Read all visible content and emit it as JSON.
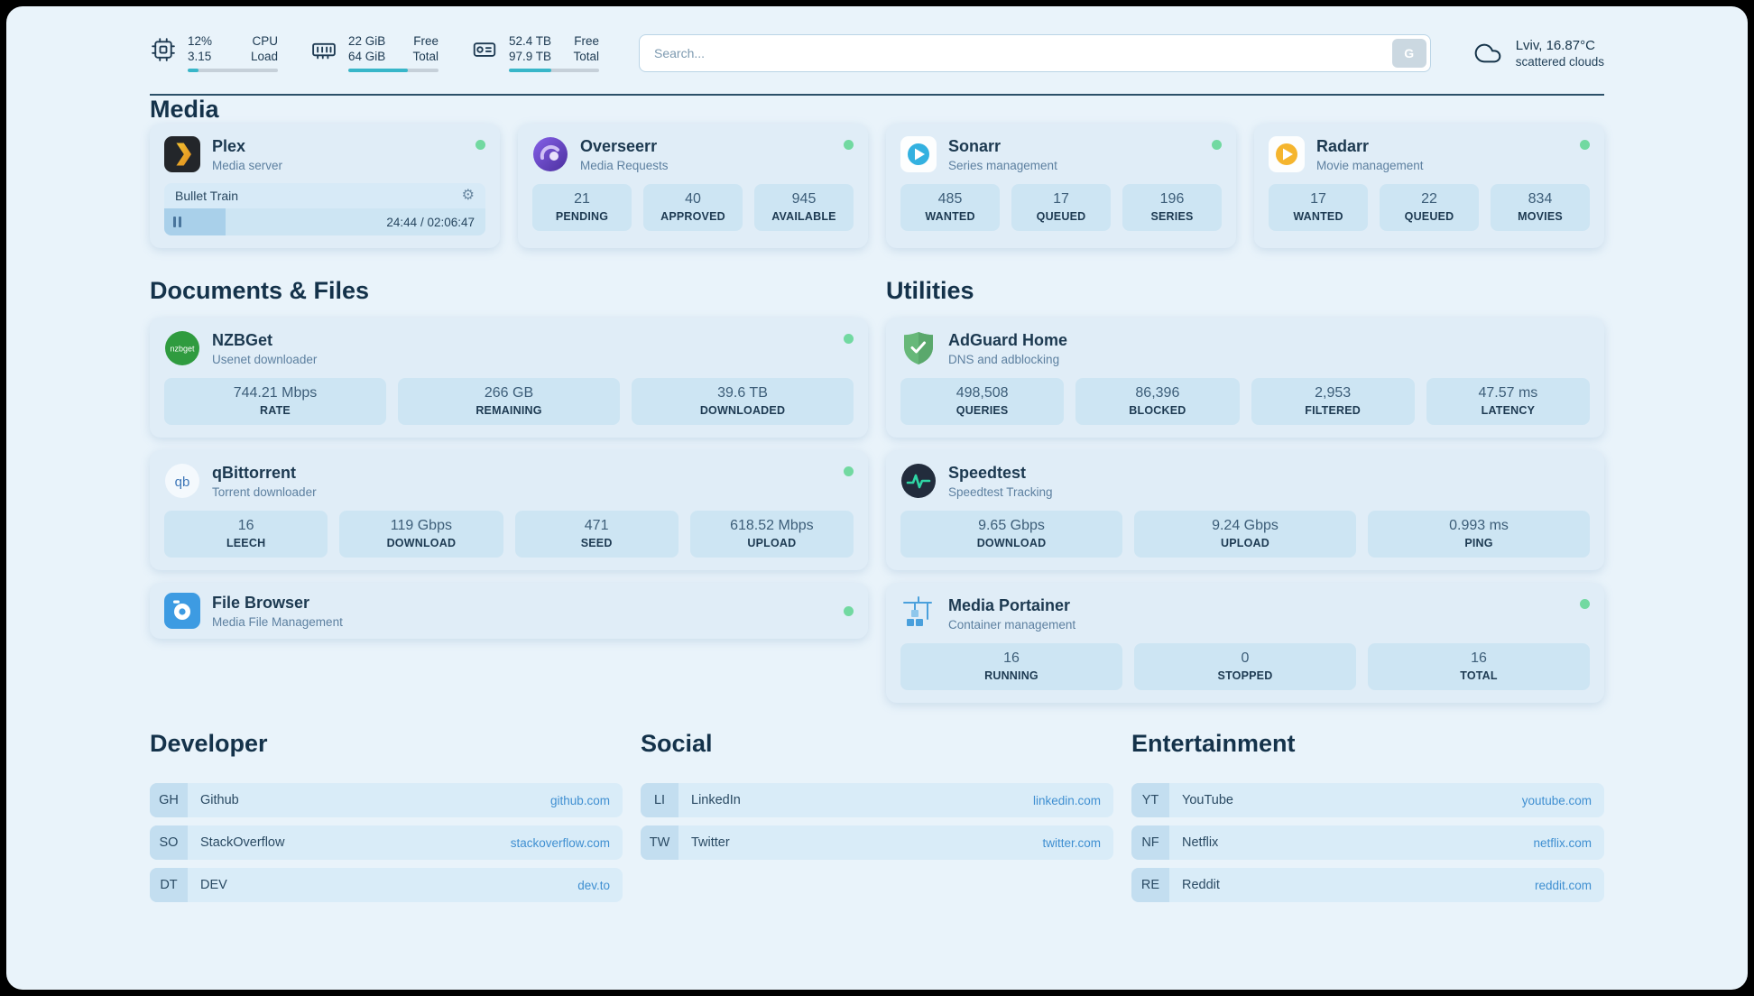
{
  "colors": {
    "status_green": "#72d9a1",
    "accent_teal": "#38b6c9",
    "link_blue": "#3f8fd1"
  },
  "topbar": {
    "cpu": {
      "pct": "12%",
      "load": "3.15",
      "l1": "CPU",
      "l2": "Load",
      "progress": 12
    },
    "ram": {
      "v1": "22 GiB",
      "v2": "64 GiB",
      "l1": "Free",
      "l2": "Total",
      "progress": 66
    },
    "disk": {
      "v1": "52.4 TB",
      "v2": "97.9 TB",
      "l1": "Free",
      "l2": "Total",
      "progress": 47
    },
    "search": {
      "placeholder": "Search...",
      "button": "G"
    },
    "weather": {
      "location": "Lviv, 16.87°C",
      "condition": "scattered clouds"
    }
  },
  "media": {
    "heading": "Media",
    "plex": {
      "title": "Plex",
      "subtitle": "Media server",
      "now_playing": "Bullet Train",
      "time": "24:44 / 02:06:47",
      "progress": 19
    },
    "overseerr": {
      "title": "Overseerr",
      "subtitle": "Media Requests",
      "stats": [
        {
          "value": "21",
          "label": "PENDING"
        },
        {
          "value": "40",
          "label": "APPROVED"
        },
        {
          "value": "945",
          "label": "AVAILABLE"
        }
      ]
    },
    "sonarr": {
      "title": "Sonarr",
      "subtitle": "Series management",
      "stats": [
        {
          "value": "485",
          "label": "WANTED"
        },
        {
          "value": "17",
          "label": "QUEUED"
        },
        {
          "value": "196",
          "label": "SERIES"
        }
      ]
    },
    "radarr": {
      "title": "Radarr",
      "subtitle": "Movie management",
      "stats": [
        {
          "value": "17",
          "label": "WANTED"
        },
        {
          "value": "22",
          "label": "QUEUED"
        },
        {
          "value": "834",
          "label": "MOVIES"
        }
      ]
    }
  },
  "documents": {
    "heading": "Documents & Files",
    "nzbget": {
      "title": "NZBGet",
      "subtitle": "Usenet downloader",
      "stats": [
        {
          "value": "744.21 Mbps",
          "label": "RATE"
        },
        {
          "value": "266 GB",
          "label": "REMAINING"
        },
        {
          "value": "39.6 TB",
          "label": "DOWNLOADED"
        }
      ]
    },
    "qbittorrent": {
      "title": "qBittorrent",
      "subtitle": "Torrent downloader",
      "stats": [
        {
          "value": "16",
          "label": "LEECH"
        },
        {
          "value": "119 Gbps",
          "label": "DOWNLOAD"
        },
        {
          "value": "471",
          "label": "SEED"
        },
        {
          "value": "618.52 Mbps",
          "label": "UPLOAD"
        }
      ]
    },
    "filebrowser": {
      "title": "File Browser",
      "subtitle": "Media File Management"
    }
  },
  "utilities": {
    "heading": "Utilities",
    "adguard": {
      "title": "AdGuard Home",
      "subtitle": "DNS and adblocking",
      "stats": [
        {
          "value": "498,508",
          "label": "QUERIES"
        },
        {
          "value": "86,396",
          "label": "BLOCKED"
        },
        {
          "value": "2,953",
          "label": "FILTERED"
        },
        {
          "value": "47.57 ms",
          "label": "LATENCY"
        }
      ]
    },
    "speedtest": {
      "title": "Speedtest",
      "subtitle": "Speedtest Tracking",
      "stats": [
        {
          "value": "9.65 Gbps",
          "label": "DOWNLOAD"
        },
        {
          "value": "9.24 Gbps",
          "label": "UPLOAD"
        },
        {
          "value": "0.993 ms",
          "label": "PING"
        }
      ]
    },
    "portainer": {
      "title": "Media Portainer",
      "subtitle": "Container management",
      "stats": [
        {
          "value": "16",
          "label": "RUNNING"
        },
        {
          "value": "0",
          "label": "STOPPED"
        },
        {
          "value": "16",
          "label": "TOTAL"
        }
      ]
    }
  },
  "bookmarks": {
    "developer": {
      "heading": "Developer",
      "items": [
        {
          "abbr": "GH",
          "name": "Github",
          "url": "github.com"
        },
        {
          "abbr": "SO",
          "name": "StackOverflow",
          "url": "stackoverflow.com"
        },
        {
          "abbr": "DT",
          "name": "DEV",
          "url": "dev.to"
        }
      ]
    },
    "social": {
      "heading": "Social",
      "items": [
        {
          "abbr": "LI",
          "name": "LinkedIn",
          "url": "linkedin.com"
        },
        {
          "abbr": "TW",
          "name": "Twitter",
          "url": "twitter.com"
        }
      ]
    },
    "entertainment": {
      "heading": "Entertainment",
      "items": [
        {
          "abbr": "YT",
          "name": "YouTube",
          "url": "youtube.com"
        },
        {
          "abbr": "NF",
          "name": "Netflix",
          "url": "netflix.com"
        },
        {
          "abbr": "RE",
          "name": "Reddit",
          "url": "reddit.com"
        }
      ]
    }
  }
}
